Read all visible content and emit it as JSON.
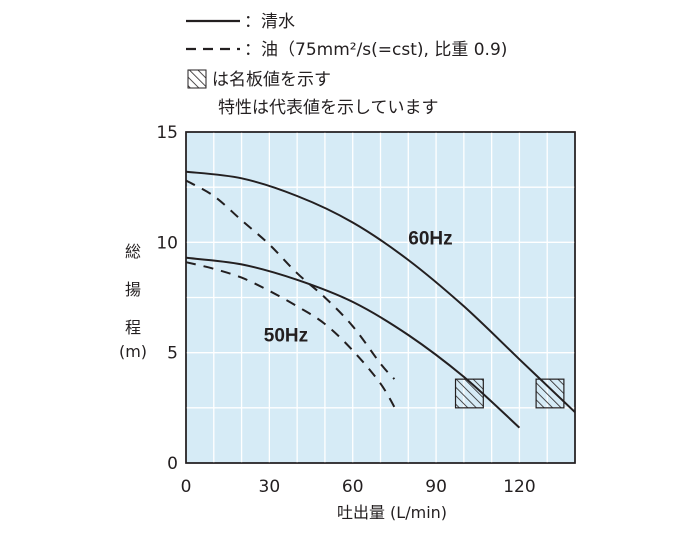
{
  "legend": {
    "water": "：清水",
    "oil": "：油（75mm²/s(=cst), 比重 0.9)",
    "plate": "は名板値を示す",
    "note": "特性は代表値を示しています"
  },
  "chart_data": {
    "type": "line",
    "xlabel": "吐出量 (L/min)",
    "ylabel_chars": [
      "総",
      "揚",
      "程",
      "(m)"
    ],
    "xlim": [
      0,
      140
    ],
    "ylim": [
      0,
      15
    ],
    "x_ticks": [
      0,
      30,
      60,
      90,
      120
    ],
    "y_ticks": [
      0,
      5,
      10,
      15
    ],
    "grid": true,
    "plot_background": "#d6ebf6",
    "grid_color": "#ffffff",
    "series": [
      {
        "line": "solid",
        "x": [
          0,
          20,
          40,
          60,
          80,
          100,
          120,
          140
        ],
        "y": [
          13.2,
          12.9,
          12.1,
          10.9,
          9.2,
          7.1,
          4.7,
          2.3
        ]
      },
      {
        "line": "dashed",
        "x": [
          0,
          10,
          20,
          30,
          40,
          50,
          60,
          70,
          75
        ],
        "y": [
          12.8,
          12.1,
          11.0,
          9.9,
          8.6,
          7.5,
          6.2,
          4.5,
          3.8
        ]
      },
      {
        "line": "solid",
        "x": [
          0,
          20,
          40,
          60,
          80,
          100,
          120
        ],
        "y": [
          9.3,
          9.0,
          8.3,
          7.3,
          5.8,
          3.9,
          1.6
        ]
      },
      {
        "line": "dashed",
        "x": [
          0,
          10,
          20,
          30,
          40,
          50,
          60,
          70,
          76
        ],
        "y": [
          9.1,
          8.8,
          8.4,
          7.8,
          7.1,
          6.3,
          5.1,
          3.6,
          2.3
        ]
      }
    ],
    "annotations": [
      {
        "text": "60Hz",
        "x": 80,
        "y": 9.9
      },
      {
        "text": "50Hz",
        "x": 28,
        "y": 5.5
      }
    ],
    "rated_points": [
      {
        "x": 97,
        "y_top": 3.8,
        "y_bottom": 2.5,
        "width": 10
      },
      {
        "x": 126,
        "y_top": 3.8,
        "y_bottom": 2.5,
        "width": 10
      }
    ]
  }
}
